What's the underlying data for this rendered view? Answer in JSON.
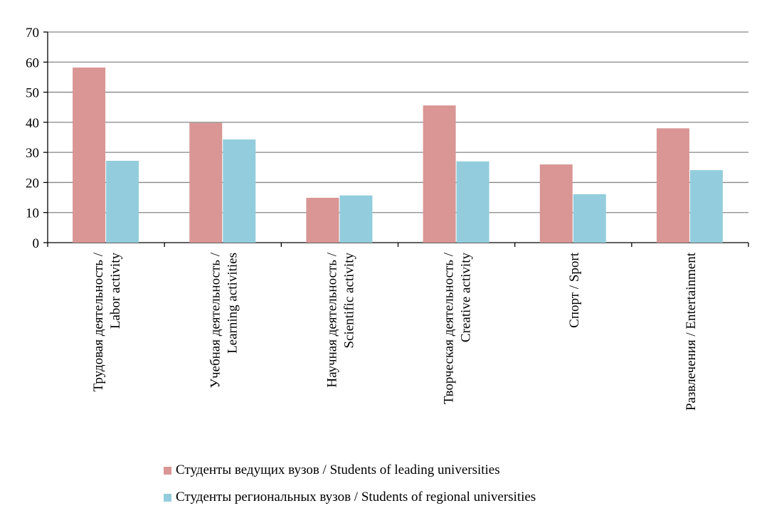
{
  "chart_data": {
    "type": "bar",
    "title": "",
    "xlabel": "",
    "ylabel": "",
    "ylim": [
      0,
      70
    ],
    "yticks": [
      0,
      10,
      20,
      30,
      40,
      50,
      60,
      70
    ],
    "grid": true,
    "legend_position": "bottom",
    "categories": [
      [
        "Трудовая деятельность /",
        "Labor activity"
      ],
      [
        "Учебная деятельность /",
        "Learning activities"
      ],
      [
        "Научная деятельность /",
        "Scientific activity"
      ],
      [
        "Творческая деятельность /",
        "Creative activity"
      ],
      [
        "Спорт / Sport"
      ],
      [
        "Развлечения / Entertainment"
      ]
    ],
    "series": [
      {
        "name": "Студенты ведущих вузов / Students of leading universities",
        "color": "#d99694",
        "values": [
          58.2,
          39.8,
          14.9,
          45.6,
          26.0,
          38.0
        ]
      },
      {
        "name": "Студенты региональных вузов / Students of regional universities",
        "color": "#93cddd",
        "values": [
          27.2,
          34.3,
          15.7,
          27.0,
          16.1,
          24.1
        ]
      }
    ]
  }
}
